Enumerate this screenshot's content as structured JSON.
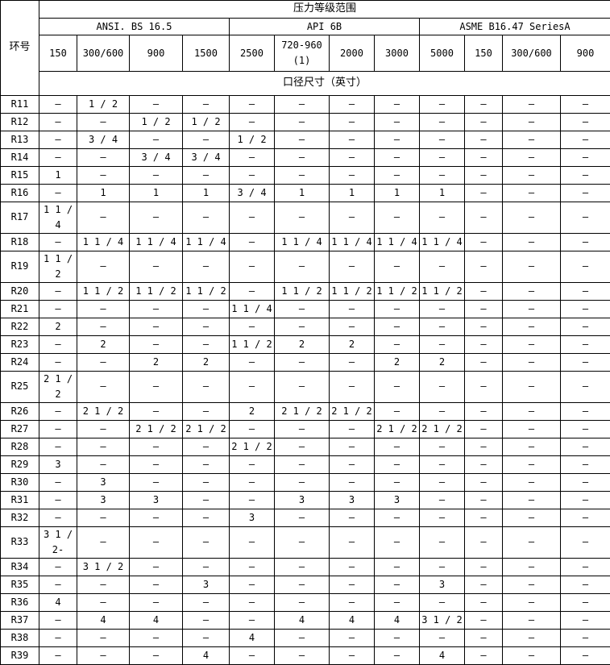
{
  "colors": {
    "border": "#000000",
    "background": "#ffffff",
    "text": "#000000"
  },
  "table": {
    "corner_label": "环号",
    "banner": "压力等级范围",
    "size_band": "口径尺寸（英寸）",
    "groups": [
      {
        "label": "ANSI. BS 16.5"
      },
      {
        "label": "API 6B"
      },
      {
        "label": "ASME B16.47 SeriesA"
      }
    ],
    "pressure_classes": [
      "150",
      "300/600",
      "900",
      "1500",
      "2500",
      "720-960\n(1)",
      "2000",
      "3000",
      "5000",
      "150",
      "300/600",
      "900"
    ],
    "rows": [
      {
        "ring": "R11",
        "cells": [
          "–",
          "1 / 2",
          "–",
          "–",
          "–",
          "–",
          "–",
          "–",
          "–",
          "–",
          "–",
          "–"
        ]
      },
      {
        "ring": "R12",
        "cells": [
          "–",
          "–",
          "1 / 2",
          "1 / 2",
          "–",
          "–",
          "–",
          "–",
          "–",
          "–",
          "–",
          "–"
        ]
      },
      {
        "ring": "R13",
        "cells": [
          "–",
          "3 / 4",
          "–",
          "–",
          "1 / 2",
          "–",
          "–",
          "–",
          "–",
          "–",
          "–",
          "–"
        ]
      },
      {
        "ring": "R14",
        "cells": [
          "–",
          "–",
          "3 / 4",
          "3 / 4",
          "–",
          "–",
          "–",
          "–",
          "–",
          "–",
          "–",
          "–"
        ]
      },
      {
        "ring": "R15",
        "cells": [
          "1",
          "–",
          "–",
          "–",
          "–",
          "–",
          "–",
          "–",
          "–",
          "–",
          "–",
          "–"
        ]
      },
      {
        "ring": "R16",
        "cells": [
          "–",
          "1",
          "1",
          "1",
          "3 / 4",
          "1",
          "1",
          "1",
          "1",
          "–",
          "–",
          "–"
        ]
      },
      {
        "ring": "R17",
        "cells": [
          "1 1 / 4",
          "–",
          "–",
          "–",
          "–",
          "–",
          "–",
          "–",
          "–",
          "–",
          "–",
          "–"
        ]
      },
      {
        "ring": "R18",
        "cells": [
          "–",
          "1 1 / 4",
          "1 1 / 4",
          "1 1 / 4",
          "–",
          "1 1 / 4",
          "1 1 / 4",
          "1 1 / 4",
          "1 1 / 4",
          "–",
          "–",
          "–"
        ]
      },
      {
        "ring": "R19",
        "cells": [
          "1 1 / 2",
          "–",
          "–",
          "–",
          "–",
          "–",
          "–",
          "–",
          "–",
          "–",
          "–",
          "–"
        ]
      },
      {
        "ring": "R20",
        "cells": [
          "–",
          "1 1 / 2",
          "1 1 / 2",
          "1 1 / 2",
          "–",
          "1 1 / 2",
          "1 1 / 2",
          "1 1 / 2",
          "1 1 / 2",
          "–",
          "–",
          "–"
        ]
      },
      {
        "ring": "R21",
        "cells": [
          "–",
          "–",
          "–",
          "–",
          "1 1 / 4",
          "–",
          "–",
          "–",
          "–",
          "–",
          "–",
          "–"
        ]
      },
      {
        "ring": "R22",
        "cells": [
          "2",
          "–",
          "–",
          "–",
          "–",
          "–",
          "–",
          "–",
          "–",
          "–",
          "–",
          "–"
        ]
      },
      {
        "ring": "R23",
        "cells": [
          "–",
          "2",
          "–",
          "–",
          "1 1 / 2",
          "2",
          "2",
          "–",
          "–",
          "–",
          "–",
          "–"
        ]
      },
      {
        "ring": "R24",
        "cells": [
          "–",
          "–",
          "2",
          "2",
          "–",
          "–",
          "–",
          "2",
          "2",
          "–",
          "–",
          "–"
        ]
      },
      {
        "ring": "R25",
        "cells": [
          "2 1 / 2",
          "–",
          "–",
          "–",
          "–",
          "–",
          "–",
          "–",
          "–",
          "–",
          "–",
          "–"
        ]
      },
      {
        "ring": "R26",
        "cells": [
          "–",
          "2 1 / 2",
          "–",
          "–",
          "2",
          "2 1 / 2",
          "2 1 / 2",
          "–",
          "–",
          "–",
          "–",
          "–"
        ]
      },
      {
        "ring": "R27",
        "cells": [
          "–",
          "–",
          "2 1 / 2",
          "2 1 / 2",
          "–",
          "–",
          "–",
          "2 1 / 2",
          "2 1 / 2",
          "–",
          "–",
          "–"
        ]
      },
      {
        "ring": "R28",
        "cells": [
          "–",
          "–",
          "–",
          "–",
          "2 1 / 2",
          "–",
          "–",
          "–",
          "–",
          "–",
          "–",
          "–"
        ]
      },
      {
        "ring": "R29",
        "cells": [
          "3",
          "–",
          "–",
          "–",
          "–",
          "–",
          "–",
          "–",
          "–",
          "–",
          "–",
          "–"
        ]
      },
      {
        "ring": "R30",
        "cells": [
          "–",
          "3",
          "–",
          "–",
          "–",
          "–",
          "–",
          "–",
          "–",
          "–",
          "–",
          "–"
        ]
      },
      {
        "ring": "R31",
        "cells": [
          "–",
          "3",
          "3",
          "–",
          "–",
          "3",
          "3",
          "3",
          "–",
          "–",
          "–",
          "–"
        ]
      },
      {
        "ring": "R32",
        "cells": [
          "–",
          "–",
          "–",
          "–",
          "3",
          "–",
          "–",
          "–",
          "–",
          "–",
          "–",
          "–"
        ]
      },
      {
        "ring": "R33",
        "cells": [
          "3 1 / 2-",
          "–",
          "–",
          "–",
          "–",
          "–",
          "–",
          "–",
          "–",
          "–",
          "–",
          "–"
        ]
      },
      {
        "ring": "R34",
        "cells": [
          "–",
          "3 1 / 2",
          "–",
          "–",
          "–",
          "–",
          "–",
          "–",
          "–",
          "–",
          "–",
          "–"
        ]
      },
      {
        "ring": "R35",
        "cells": [
          "–",
          "–",
          "–",
          "3",
          "–",
          "–",
          "–",
          "–",
          "3",
          "–",
          "–",
          "–"
        ]
      },
      {
        "ring": "R36",
        "cells": [
          "4",
          "–",
          "–",
          "–",
          "–",
          "–",
          "–",
          "–",
          "–",
          "–",
          "–",
          "–"
        ]
      },
      {
        "ring": "R37",
        "cells": [
          "–",
          "4",
          "4",
          "–",
          "–",
          "4",
          "4",
          "4",
          "3 1 / 2",
          "–",
          "–",
          "–"
        ]
      },
      {
        "ring": "R38",
        "cells": [
          "–",
          "–",
          "–",
          "–",
          "4",
          "–",
          "–",
          "–",
          "–",
          "–",
          "–",
          "–"
        ]
      },
      {
        "ring": "R39",
        "cells": [
          "–",
          "–",
          "–",
          "4",
          "–",
          "–",
          "–",
          "–",
          "4",
          "–",
          "–",
          "–"
        ]
      }
    ]
  }
}
